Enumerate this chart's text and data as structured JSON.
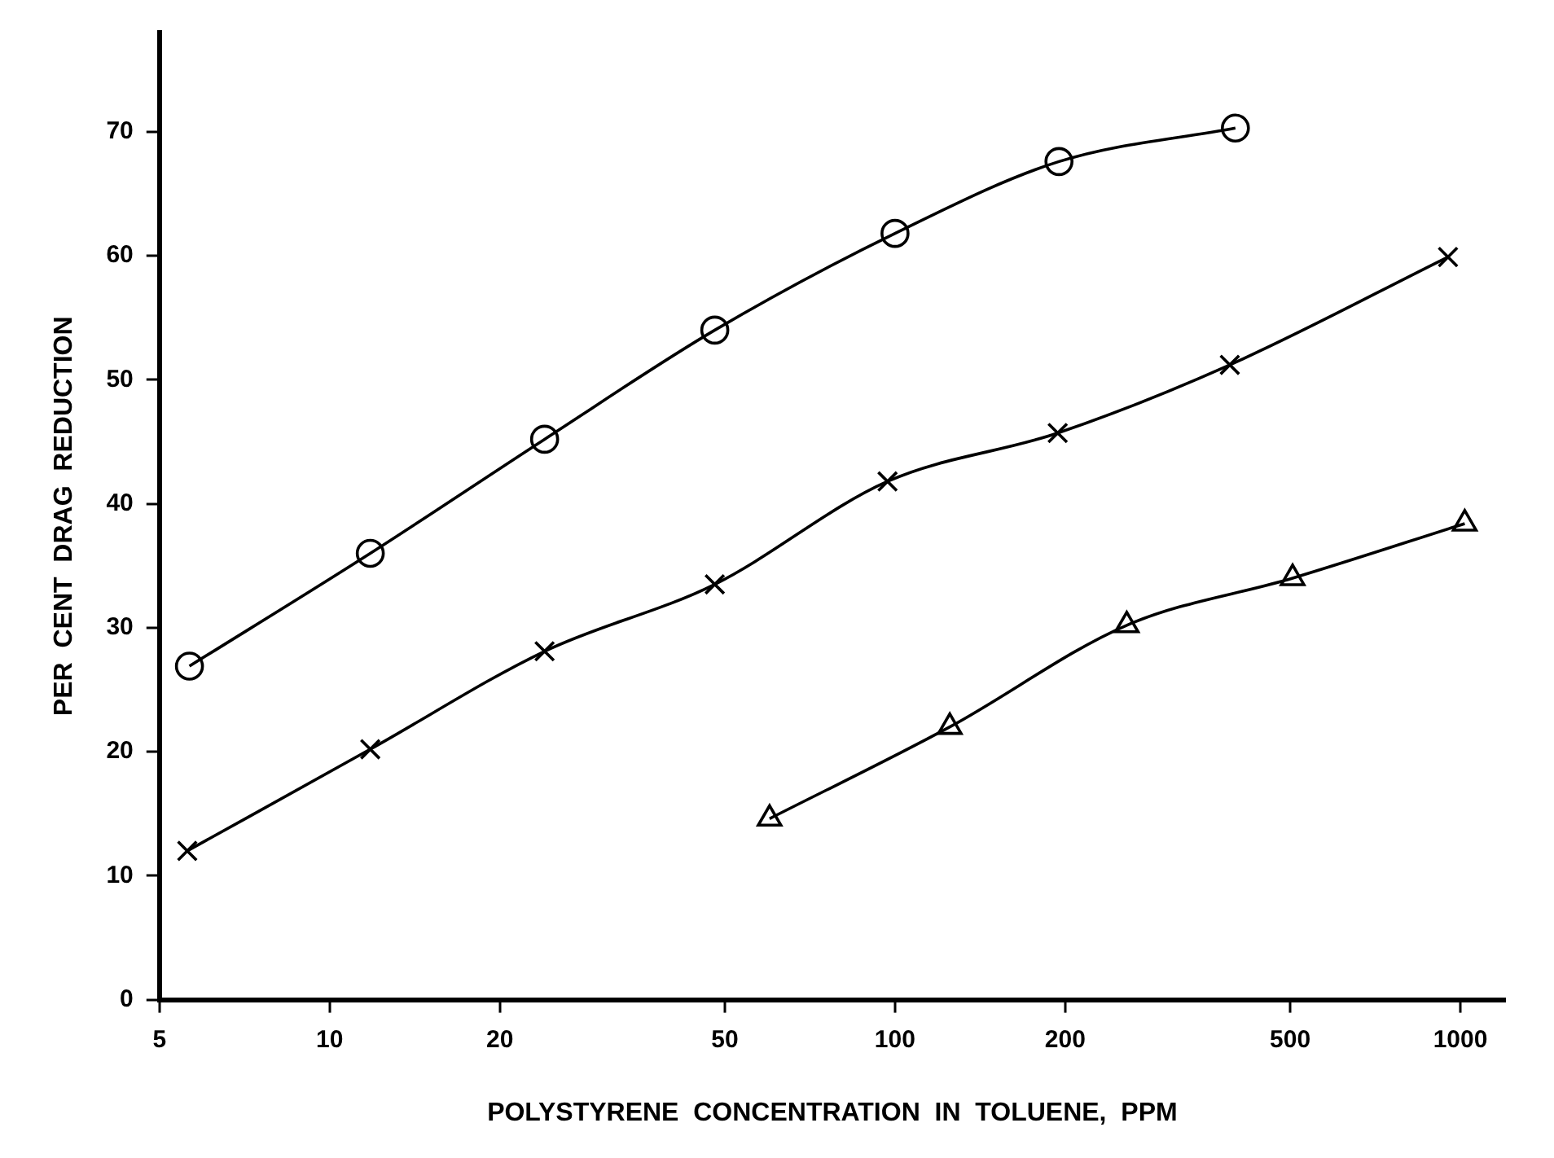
{
  "chart_data": {
    "type": "line",
    "xlabel": "POLYSTYRENE  CONCENTRATION  IN  TOLUENE,  PPM",
    "ylabel": "PER  CENT  DRAG  REDUCTION",
    "log": "x",
    "xlim": [
      5,
      1200
    ],
    "xticks": [
      5,
      10,
      20,
      50,
      100,
      200,
      500,
      1000
    ],
    "ylim": [
      0,
      78
    ],
    "yticks": [
      0,
      10,
      20,
      30,
      40,
      50,
      60,
      70
    ],
    "grid": false,
    "legend": false,
    "line_style": "solid",
    "series": [
      {
        "color": "#000000",
        "marker": "circle",
        "x": [
          5.65,
          11.8,
          24,
          48,
          100,
          195,
          400
        ],
        "values": [
          26.9,
          36.0,
          45.2,
          54.0,
          61.8,
          67.6,
          70.3
        ]
      },
      {
        "color": "#000000",
        "marker": "cross",
        "x": [
          5.6,
          11.8,
          24,
          48,
          97,
          194,
          391,
          951
        ],
        "values": [
          12.0,
          20.2,
          28.1,
          33.5,
          41.8,
          45.7,
          51.2,
          59.9
        ]
      },
      {
        "color": "#000000",
        "marker": "triangle",
        "x": [
          60,
          125,
          257,
          505,
          1018
        ],
        "values": [
          14.6,
          22.0,
          30.2,
          34.0,
          38.4
        ]
      }
    ]
  }
}
